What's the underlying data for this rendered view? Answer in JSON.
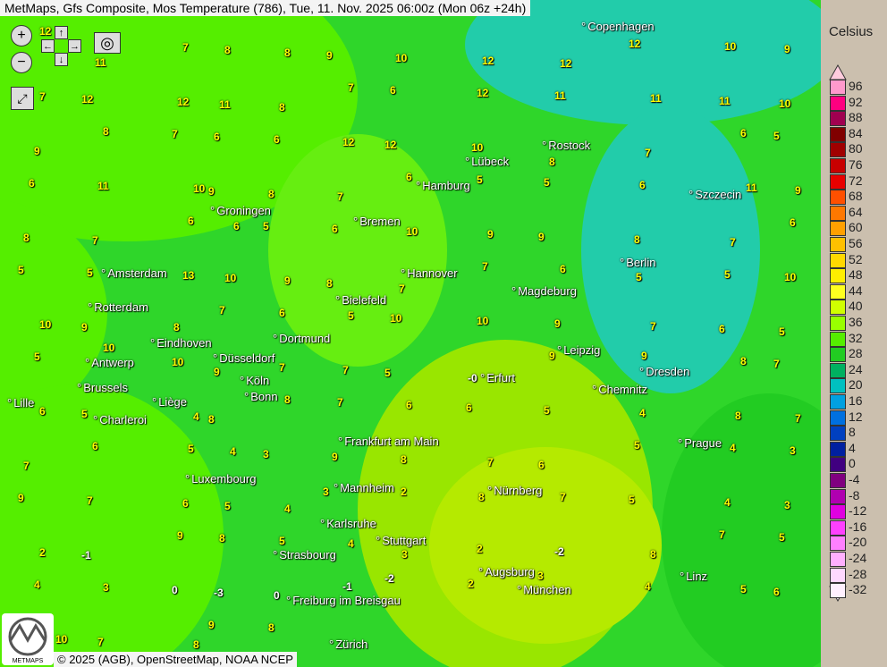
{
  "title": "MetMaps, Gfs Composite, Mos Temperature (786), Tue, 11. Nov. 2025 06:00z (Mon 06z +24h)",
  "controls": {
    "zoom_in": "zoom-in",
    "zoom_out": "zoom-out",
    "pan_up": "↑",
    "pan_down": "↓",
    "pan_left": "←",
    "pan_right": "→",
    "camera": "camera",
    "fullscreen": "fullscreen"
  },
  "copyright": "© 2025 (AGB), OpenStreetMap, NOAA NCEP",
  "logo_text": "METMAPS",
  "legend": {
    "unit": "Celsius",
    "levels": [
      96,
      92,
      88,
      84,
      80,
      76,
      72,
      68,
      64,
      60,
      56,
      52,
      48,
      44,
      40,
      36,
      32,
      28,
      24,
      20,
      16,
      12,
      8,
      4,
      0,
      -4,
      -8,
      -12,
      -16,
      -20,
      -24,
      -28,
      -32
    ],
    "colors": [
      "#ff99cc",
      "#ff0080",
      "#a00050",
      "#800000",
      "#a00000",
      "#c80000",
      "#e80000",
      "#ff5000",
      "#ff7800",
      "#ffa000",
      "#ffc000",
      "#ffd800",
      "#ffee00",
      "#ffff20",
      "#d0ff00",
      "#99ff00",
      "#55ee00",
      "#22cc22",
      "#00b060",
      "#00c0c0",
      "#00a0e0",
      "#0070e0",
      "#0040c0",
      "#0020a0",
      "#400080",
      "#800080",
      "#b000b0",
      "#e000e0",
      "#ff40ff",
      "#ff80ff",
      "#ffb0ff",
      "#ffd8ff",
      "#fff0ff"
    ]
  },
  "cities": [
    "Copenhagen",
    "Rostock",
    "Lübeck",
    "Hamburg",
    "Szczecin",
    "Groningen",
    "Bremen",
    "Berlin",
    "Amsterdam",
    "Hannover",
    "Magdeburg",
    "Bielefeld",
    "Rotterdam",
    "Dortmund",
    "Eindhoven",
    "Leipzig",
    "Düsseldorf",
    "Antwerp",
    "Dresden",
    "Köln",
    "Erfurt",
    "Chemnitz",
    "Brussels",
    "Bonn",
    "Lille",
    "Liège",
    "Charleroi",
    "Frankfurt am Main",
    "Prague",
    "Luxembourg",
    "Mannheim",
    "Nürnberg",
    "Karlsruhe",
    "Stuttgart",
    "Strasbourg",
    "Augsburg",
    "Linz",
    "München",
    "Freiburg im Breisgau",
    "Zürich"
  ],
  "temps": [
    "12",
    "11",
    "7",
    "8",
    "8",
    "9",
    "10",
    "12",
    "12",
    "12",
    "10",
    "9",
    "7",
    "12",
    "12",
    "11",
    "8",
    "7",
    "6",
    "12",
    "11",
    "11",
    "11",
    "10",
    "9",
    "8",
    "7",
    "6",
    "6",
    "12",
    "12",
    "10",
    "8",
    "7",
    "6",
    "5",
    "6",
    "11",
    "10",
    "9",
    "8",
    "7",
    "6",
    "5",
    "5",
    "6",
    "11",
    "9",
    "8",
    "7",
    "6",
    "6",
    "5",
    "6",
    "10",
    "9",
    "9",
    "8",
    "7",
    "6",
    "5",
    "5",
    "13",
    "10",
    "9",
    "8",
    "7",
    "7",
    "6",
    "5",
    "5",
    "10",
    "10",
    "9",
    "8",
    "7",
    "6",
    "5",
    "10",
    "10",
    "9",
    "7",
    "6",
    "5",
    "5",
    "10",
    "10",
    "9",
    "7",
    "7",
    "5",
    "-0",
    "9",
    "9",
    "8",
    "7",
    "6",
    "5",
    "4",
    "8",
    "8",
    "7",
    "6",
    "6",
    "5",
    "4",
    "8",
    "7",
    "7",
    "6",
    "5",
    "4",
    "3",
    "9",
    "8",
    "7",
    "6",
    "5",
    "4",
    "3",
    "9",
    "7",
    "6",
    "5",
    "4",
    "3",
    "2",
    "8",
    "7",
    "5",
    "4",
    "3",
    "2",
    "-1",
    "9",
    "8",
    "5",
    "4",
    "3",
    "2",
    "-2",
    "8",
    "7",
    "5",
    "4",
    "3",
    "0",
    "-3",
    "0",
    "-1",
    "-2",
    "2",
    "3",
    "4",
    "5",
    "6",
    "10",
    "7",
    "8",
    "9",
    "8"
  ],
  "teal_regions": "sea"
}
